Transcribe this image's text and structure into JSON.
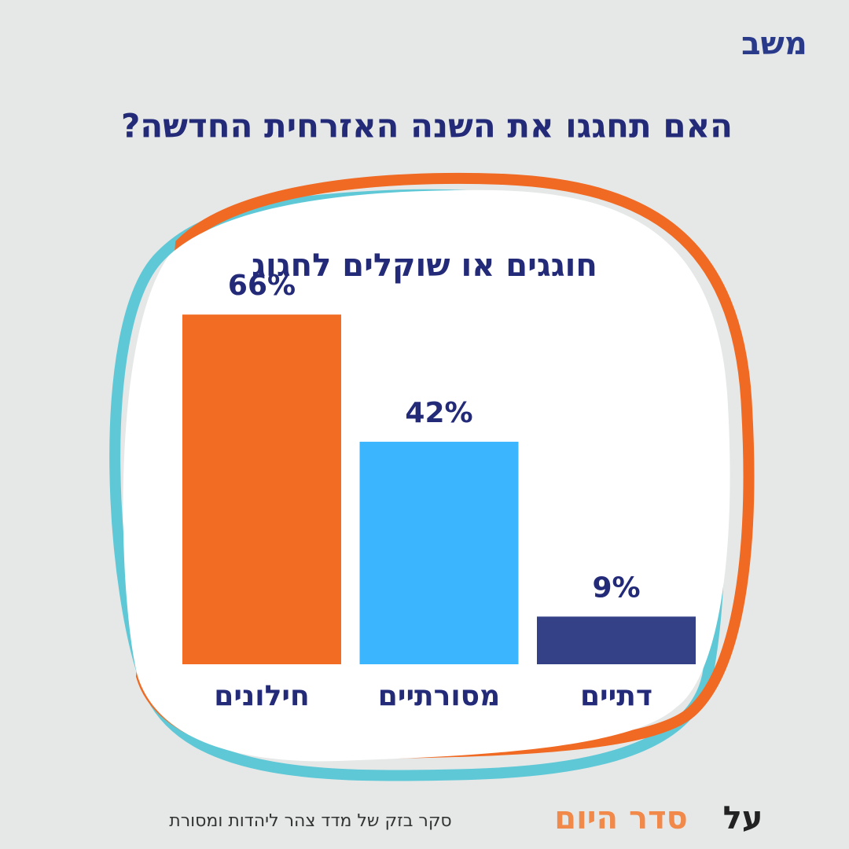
{
  "logo": "משב",
  "chart_data": {
    "type": "bar",
    "title": "האם תחגגו את השנה האזרחית החדשה?",
    "subtitle": "חוגגים או שוקלים לחגוג",
    "categories": [
      "חילונים",
      "מסורתיים",
      "דתיים"
    ],
    "values": [
      66,
      42,
      9
    ],
    "value_labels": [
      "66%",
      "42%",
      "9%"
    ],
    "colors": [
      "#f26c24",
      "#3ab5fe",
      "#354186"
    ]
  },
  "footer": {
    "source": "סקר בזק של מדד צהר ליהדות ומסורת",
    "brand_prefix": "על",
    "brand_name": "סדר היום"
  }
}
